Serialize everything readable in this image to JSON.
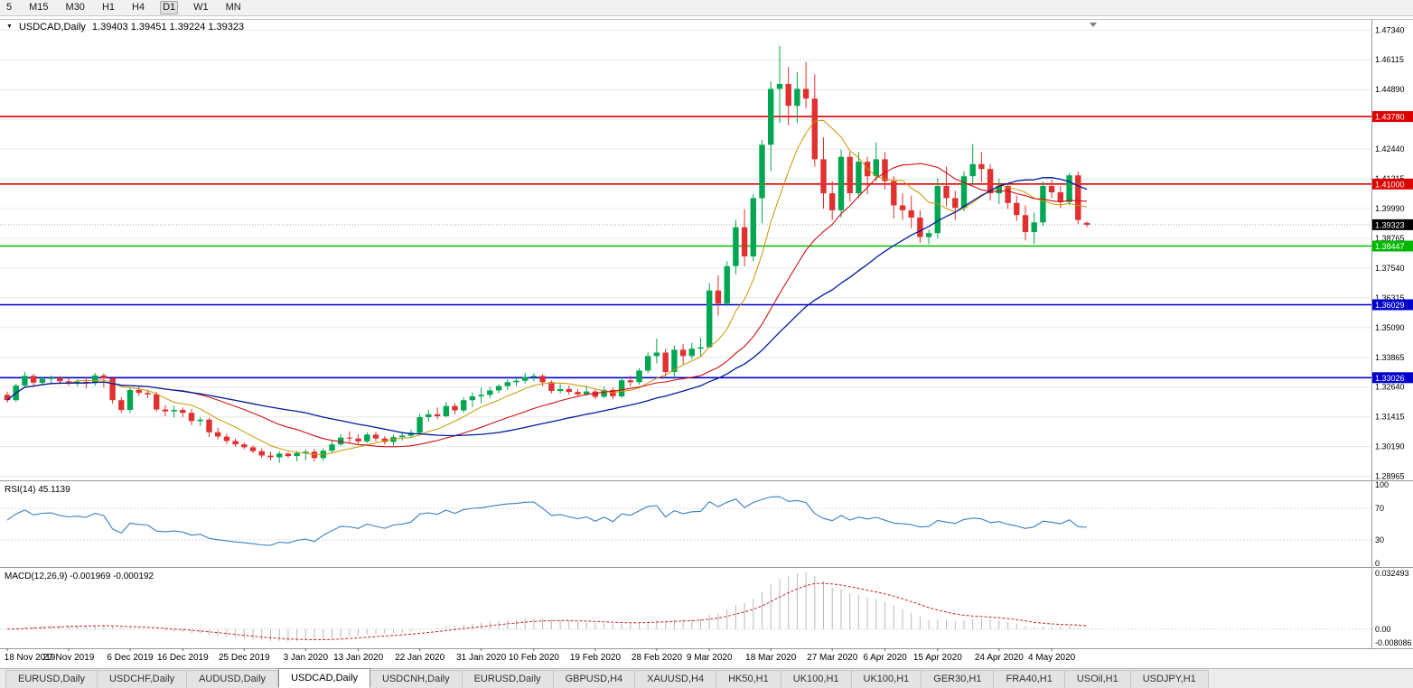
{
  "toolbar": {
    "timeframes": [
      "5",
      "M15",
      "M30",
      "H1",
      "H4",
      "D1",
      "W1",
      "MN"
    ],
    "active": "D1"
  },
  "chart_header": {
    "menu_icon": "▼",
    "symbol": "USDCAD,Daily",
    "ohlc": "1.39403 1.39451 1.39224 1.39323"
  },
  "price_axis": {
    "grid_labels": [
      "1.47340",
      "1.46115",
      "1.44890",
      "1.43665",
      "1.42440",
      "1.41215",
      "1.39990",
      "1.38765",
      "1.37540",
      "1.36315",
      "1.35090",
      "1.33865",
      "1.32640",
      "1.31415",
      "1.30190",
      "1.28965"
    ]
  },
  "levels": [
    {
      "label": "1.43780",
      "value": 1.4378,
      "color": "#dd0000"
    },
    {
      "label": "1.41000",
      "value": 1.41,
      "color": "#dd0000"
    },
    {
      "label": "1.38447",
      "value": 1.38447,
      "color": "#00b800"
    },
    {
      "label": "1.36029",
      "value": 1.36029,
      "color": "#0000cc"
    },
    {
      "label": "1.33026",
      "value": 1.33026,
      "color": "#0000cc"
    }
  ],
  "current_price": {
    "label": "1.39323",
    "value": 1.39323,
    "badge_color": "#000000"
  },
  "rsi_panel": {
    "label": "RSI(14) 45.1139",
    "value": 45.1139,
    "axis_labels": [
      "100",
      "70",
      "30",
      "0"
    ],
    "line_color": "#3a7ec6"
  },
  "macd_panel": {
    "label": "MACD(12,26,9) -0.001969 -0.000192",
    "macd_value": -0.001969,
    "signal_value": -0.000192,
    "axis_labels": [
      "0.032493",
      "0.00",
      "-0.008086"
    ],
    "histogram_color": "#b9b9b9",
    "signal_color": "#cc2222"
  },
  "time_axis": {
    "labels": [
      {
        "text": "18 Nov 2019",
        "i": 0
      },
      {
        "text": "27 Nov 2019",
        "i": 7
      },
      {
        "text": "6 Dec 2019",
        "i": 14
      },
      {
        "text": "16 Dec 2019",
        "i": 20
      },
      {
        "text": "25 Dec 2019",
        "i": 27
      },
      {
        "text": "3 Jan 2020",
        "i": 34
      },
      {
        "text": "13 Jan 2020",
        "i": 40
      },
      {
        "text": "22 Jan 2020",
        "i": 47
      },
      {
        "text": "31 Jan 2020",
        "i": 54
      },
      {
        "text": "10 Feb 2020",
        "i": 60
      },
      {
        "text": "19 Feb 2020",
        "i": 67
      },
      {
        "text": "28 Feb 2020",
        "i": 74
      },
      {
        "text": "9 Mar 2020",
        "i": 80
      },
      {
        "text": "18 Mar 2020",
        "i": 87
      },
      {
        "text": "27 Mar 2020",
        "i": 94
      },
      {
        "text": "6 Apr 2020",
        "i": 100
      },
      {
        "text": "15 Apr 2020",
        "i": 106
      },
      {
        "text": "24 Apr 2020",
        "i": 113
      },
      {
        "text": "4 May 2020",
        "i": 119
      }
    ]
  },
  "tabs": [
    {
      "label": "EURUSD,Daily",
      "active": false
    },
    {
      "label": "USDCHF,Daily",
      "active": false
    },
    {
      "label": "AUDUSD,Daily",
      "active": false
    },
    {
      "label": "USDCAD,Daily",
      "active": true
    },
    {
      "label": "USDCNH,Daily",
      "active": false
    },
    {
      "label": "EURUSD,Daily",
      "active": false
    },
    {
      "label": "GBPUSD,H4",
      "active": false
    },
    {
      "label": "XAUUSD,H4",
      "active": false
    },
    {
      "label": "HK50,H1",
      "active": false
    },
    {
      "label": "UK100,H1",
      "active": false
    },
    {
      "label": "UK100,H1",
      "active": false
    },
    {
      "label": "GER30,H1",
      "active": false
    },
    {
      "label": "FRA40,H1",
      "active": false
    },
    {
      "label": "USOil,H1",
      "active": false
    },
    {
      "label": "USDJPY,H1",
      "active": false
    }
  ],
  "chart_data": {
    "type": "candlestick",
    "symbol": "USDCAD",
    "timeframe": "Daily",
    "title": "USDCAD,Daily",
    "ylim": [
      1.288,
      1.4776
    ],
    "grid": {
      "start": 1.4734,
      "step": 0.01225,
      "count": 16
    },
    "colors": {
      "up": "#00a651",
      "down": "#e03030",
      "grid": "#e8e8e8"
    },
    "moving_averages": [
      {
        "name": "ma-fast",
        "period": 8,
        "color": "#c89600",
        "width": 1
      },
      {
        "name": "ma-mid",
        "period": 20,
        "color": "#cc1111",
        "width": 1.1
      },
      {
        "name": "ma-slow",
        "period": 34,
        "color": "#001c9c",
        "width": 1.3
      }
    ],
    "indicators": [
      {
        "type": "rsi",
        "period": 14,
        "current": 45.1139
      },
      {
        "type": "macd",
        "fast": 12,
        "slow": 26,
        "signal": 9,
        "current_macd": -0.001969,
        "current_signal": -0.000192
      }
    ],
    "ohlc": [
      [
        1.3232,
        1.3245,
        1.32,
        1.321
      ],
      [
        1.321,
        1.3278,
        1.3204,
        1.327
      ],
      [
        1.327,
        1.3327,
        1.3262,
        1.331
      ],
      [
        1.331,
        1.3318,
        1.3268,
        1.3282
      ],
      [
        1.3282,
        1.3306,
        1.327,
        1.3298
      ],
      [
        1.3298,
        1.3312,
        1.328,
        1.3302
      ],
      [
        1.3302,
        1.331,
        1.3275,
        1.3288
      ],
      [
        1.3288,
        1.33,
        1.327,
        1.328
      ],
      [
        1.328,
        1.3296,
        1.3268,
        1.3286
      ],
      [
        1.3286,
        1.3304,
        1.3258,
        1.328
      ],
      [
        1.328,
        1.3322,
        1.327,
        1.3312
      ],
      [
        1.3312,
        1.332,
        1.3262,
        1.33
      ],
      [
        1.33,
        1.3308,
        1.3196,
        1.321
      ],
      [
        1.321,
        1.3222,
        1.3158,
        1.317
      ],
      [
        1.317,
        1.3262,
        1.3156,
        1.3252
      ],
      [
        1.3252,
        1.3266,
        1.3228,
        1.324
      ],
      [
        1.324,
        1.3252,
        1.3218,
        1.3234
      ],
      [
        1.3234,
        1.3244,
        1.3162,
        1.3172
      ],
      [
        1.3172,
        1.319,
        1.3144,
        1.3164
      ],
      [
        1.3164,
        1.3186,
        1.3138,
        1.317
      ],
      [
        1.317,
        1.318,
        1.314,
        1.3158
      ],
      [
        1.3158,
        1.3174,
        1.3108,
        1.3124
      ],
      [
        1.3124,
        1.314,
        1.3104,
        1.313
      ],
      [
        1.313,
        1.3138,
        1.3058,
        1.3078
      ],
      [
        1.3078,
        1.3096,
        1.3048,
        1.306
      ],
      [
        1.306,
        1.3072,
        1.303,
        1.3042
      ],
      [
        1.3042,
        1.3052,
        1.3018,
        1.3028
      ],
      [
        1.3028,
        1.3036,
        1.3008,
        1.3016
      ],
      [
        1.3016,
        1.3024,
        1.2992,
        1.3
      ],
      [
        1.3,
        1.3012,
        1.2972,
        1.2982
      ],
      [
        1.2982,
        1.2998,
        1.2962,
        1.2975
      ],
      [
        1.2975,
        1.3,
        1.2952,
        1.299
      ],
      [
        1.299,
        1.2996,
        1.2972,
        1.298
      ],
      [
        1.298,
        1.3002,
        1.2958,
        1.2992
      ],
      [
        1.2992,
        1.3008,
        1.2962,
        1.2998
      ],
      [
        1.2998,
        1.301,
        1.2958,
        1.2972
      ],
      [
        1.2972,
        1.3012,
        1.296,
        1.3002
      ],
      [
        1.3002,
        1.3044,
        1.2994,
        1.3028
      ],
      [
        1.3028,
        1.307,
        1.3022,
        1.3056
      ],
      [
        1.3056,
        1.3082,
        1.3032,
        1.3052
      ],
      [
        1.3052,
        1.3068,
        1.3028,
        1.304
      ],
      [
        1.304,
        1.3078,
        1.3034,
        1.3068
      ],
      [
        1.3068,
        1.308,
        1.304,
        1.3052
      ],
      [
        1.3052,
        1.3062,
        1.3028,
        1.3038
      ],
      [
        1.3038,
        1.3068,
        1.3022,
        1.3058
      ],
      [
        1.3058,
        1.3074,
        1.3044,
        1.3064
      ],
      [
        1.3064,
        1.3088,
        1.3054,
        1.3076
      ],
      [
        1.3076,
        1.3154,
        1.3068,
        1.314
      ],
      [
        1.314,
        1.3172,
        1.3122,
        1.3152
      ],
      [
        1.3152,
        1.318,
        1.3132,
        1.3144
      ],
      [
        1.3144,
        1.3202,
        1.314,
        1.3186
      ],
      [
        1.3186,
        1.3198,
        1.3152,
        1.3168
      ],
      [
        1.3168,
        1.3222,
        1.3158,
        1.321
      ],
      [
        1.321,
        1.3242,
        1.3182,
        1.3226
      ],
      [
        1.3226,
        1.3262,
        1.3198,
        1.3232
      ],
      [
        1.3232,
        1.3266,
        1.3218,
        1.325
      ],
      [
        1.325,
        1.3276,
        1.3238,
        1.3268
      ],
      [
        1.3268,
        1.3296,
        1.3252,
        1.3284
      ],
      [
        1.3284,
        1.3302,
        1.3268,
        1.329
      ],
      [
        1.329,
        1.3322,
        1.3278,
        1.3306
      ],
      [
        1.3306,
        1.332,
        1.3288,
        1.331
      ],
      [
        1.331,
        1.3316,
        1.3268,
        1.3284
      ],
      [
        1.3284,
        1.3292,
        1.3238,
        1.3248
      ],
      [
        1.3248,
        1.3276,
        1.3238,
        1.3256
      ],
      [
        1.3256,
        1.327,
        1.3232,
        1.3244
      ],
      [
        1.3244,
        1.3256,
        1.3224,
        1.3234
      ],
      [
        1.3234,
        1.327,
        1.3228,
        1.3246
      ],
      [
        1.3246,
        1.3256,
        1.3214,
        1.3224
      ],
      [
        1.3224,
        1.3266,
        1.3218,
        1.3252
      ],
      [
        1.3252,
        1.3262,
        1.3214,
        1.3226
      ],
      [
        1.3226,
        1.3306,
        1.322,
        1.3292
      ],
      [
        1.3292,
        1.3312,
        1.3268,
        1.3284
      ],
      [
        1.3284,
        1.3342,
        1.3274,
        1.3332
      ],
      [
        1.3332,
        1.3406,
        1.3322,
        1.3392
      ],
      [
        1.3392,
        1.3464,
        1.3362,
        1.3406
      ],
      [
        1.3406,
        1.3422,
        1.3302,
        1.3326
      ],
      [
        1.3326,
        1.3436,
        1.3298,
        1.3418
      ],
      [
        1.3418,
        1.3442,
        1.3358,
        1.3392
      ],
      [
        1.3392,
        1.3446,
        1.3378,
        1.3422
      ],
      [
        1.3422,
        1.3468,
        1.3388,
        1.3428
      ],
      [
        1.3428,
        1.3692,
        1.3426,
        1.3662
      ],
      [
        1.3662,
        1.3724,
        1.3558,
        1.3608
      ],
      [
        1.3608,
        1.3782,
        1.3598,
        1.3762
      ],
      [
        1.3762,
        1.3952,
        1.3728,
        1.3922
      ],
      [
        1.3922,
        1.3996,
        1.3762,
        1.3802
      ],
      [
        1.3802,
        1.4058,
        1.3782,
        1.4042
      ],
      [
        1.4042,
        1.4282,
        1.3938,
        1.4262
      ],
      [
        1.4262,
        1.4522,
        1.4152,
        1.4492
      ],
      [
        1.4492,
        1.4669,
        1.4352,
        1.4512
      ],
      [
        1.4512,
        1.4582,
        1.4342,
        1.4422
      ],
      [
        1.4422,
        1.4562,
        1.4352,
        1.4492
      ],
      [
        1.4492,
        1.4602,
        1.4412,
        1.4452
      ],
      [
        1.4452,
        1.4552,
        1.4172,
        1.4202
      ],
      [
        1.4202,
        1.4292,
        1.3998,
        1.4062
      ],
      [
        1.4062,
        1.4112,
        1.3952,
        1.3992
      ],
      [
        1.3992,
        1.4242,
        1.3962,
        1.4212
      ],
      [
        1.4212,
        1.4232,
        1.4028,
        1.4062
      ],
      [
        1.4062,
        1.4232,
        1.4042,
        1.4192
      ],
      [
        1.4192,
        1.4212,
        1.4058,
        1.4132
      ],
      [
        1.4132,
        1.4272,
        1.4112,
        1.4202
      ],
      [
        1.4202,
        1.4232,
        1.4078,
        1.4112
      ],
      [
        1.4112,
        1.4132,
        1.3958,
        1.4012
      ],
      [
        1.4012,
        1.4062,
        1.3952,
        1.3992
      ],
      [
        1.3992,
        1.4052,
        1.3918,
        1.3962
      ],
      [
        1.3962,
        1.3992,
        1.3858,
        1.3882
      ],
      [
        1.3882,
        1.3912,
        1.3852,
        1.3898
      ],
      [
        1.3898,
        1.4122,
        1.3878,
        1.4092
      ],
      [
        1.4092,
        1.4172,
        1.4008,
        1.4042
      ],
      [
        1.4042,
        1.4072,
        1.3952,
        1.4002
      ],
      [
        1.4002,
        1.4152,
        1.3988,
        1.4132
      ],
      [
        1.4132,
        1.4265,
        1.4098,
        1.4182
      ],
      [
        1.4182,
        1.4232,
        1.4108,
        1.4162
      ],
      [
        1.4162,
        1.4182,
        1.4032,
        1.4062
      ],
      [
        1.4062,
        1.4122,
        1.4018,
        1.4092
      ],
      [
        1.4092,
        1.4102,
        1.3998,
        1.4022
      ],
      [
        1.4022,
        1.4052,
        1.3948,
        1.3972
      ],
      [
        1.3972,
        1.4012,
        1.3868,
        1.3902
      ],
      [
        1.3902,
        1.3982,
        1.3852,
        1.3942
      ],
      [
        1.3942,
        1.4112,
        1.3928,
        1.4092
      ],
      [
        1.4092,
        1.4118,
        1.4042,
        1.4066
      ],
      [
        1.4066,
        1.4092,
        1.4002,
        1.4026
      ],
      [
        1.4026,
        1.4146,
        1.4014,
        1.4136
      ],
      [
        1.4136,
        1.4152,
        1.3936,
        1.3952
      ],
      [
        1.39403,
        1.39451,
        1.39224,
        1.39323
      ]
    ]
  }
}
